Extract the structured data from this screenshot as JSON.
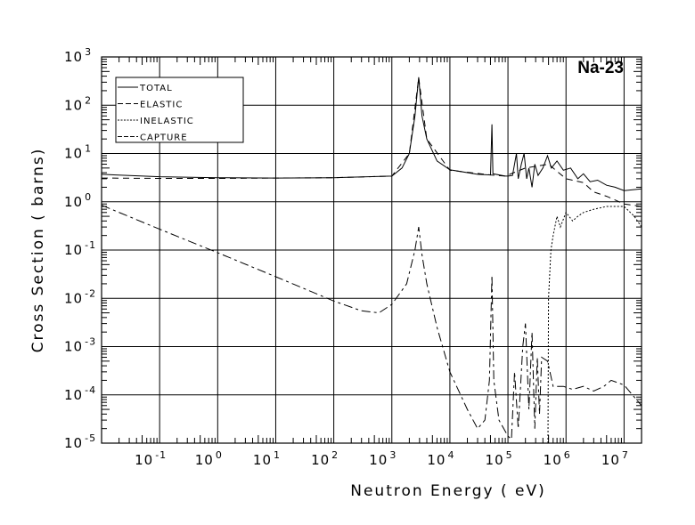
{
  "chart_data": {
    "type": "line",
    "title": "Na-23",
    "xlabel": "Neutron Energy ( eV)",
    "ylabel": "Cross Section ( barns)",
    "xscale": "log",
    "yscale": "log",
    "xlim": [
      0.01,
      20000000
    ],
    "ylim": [
      1e-05,
      1000
    ],
    "xticks": [
      {
        "base": "10",
        "exp": "-1",
        "v": 0.1
      },
      {
        "base": "10",
        "exp": "0",
        "v": 1
      },
      {
        "base": "10",
        "exp": "1",
        "v": 10
      },
      {
        "base": "10",
        "exp": "2",
        "v": 100
      },
      {
        "base": "10",
        "exp": "3",
        "v": 1000
      },
      {
        "base": "10",
        "exp": "4",
        "v": 10000
      },
      {
        "base": "10",
        "exp": "5",
        "v": 100000
      },
      {
        "base": "10",
        "exp": "6",
        "v": 1000000
      },
      {
        "base": "10",
        "exp": "7",
        "v": 10000000
      }
    ],
    "yticks": [
      {
        "base": "10",
        "exp": "3",
        "v": 1000
      },
      {
        "base": "10",
        "exp": "2",
        "v": 100
      },
      {
        "base": "10",
        "exp": "1",
        "v": 10
      },
      {
        "base": "10",
        "exp": "0",
        "v": 1
      },
      {
        "base": "10",
        "exp": "-1",
        "v": 0.1
      },
      {
        "base": "10",
        "exp": "-2",
        "v": 0.01
      },
      {
        "base": "10",
        "exp": "-3",
        "v": 0.001
      },
      {
        "base": "10",
        "exp": "-4",
        "v": 0.0001
      },
      {
        "base": "10",
        "exp": "-5",
        "v": 1e-05
      }
    ],
    "grid": true,
    "legend_position": "top-left",
    "series": [
      {
        "name": "TOTAL",
        "dash": "",
        "points": [
          [
            0.01,
            3.7
          ],
          [
            0.1,
            3.3
          ],
          [
            1,
            3.15
          ],
          [
            10,
            3.1
          ],
          [
            100,
            3.15
          ],
          [
            1000,
            3.4
          ],
          [
            1500,
            5
          ],
          [
            2000,
            10
          ],
          [
            2500,
            60
          ],
          [
            2900,
            380
          ],
          [
            3300,
            60
          ],
          [
            4000,
            20
          ],
          [
            6000,
            7
          ],
          [
            10000,
            4.6
          ],
          [
            30000,
            3.7
          ],
          [
            50000,
            3.6
          ],
          [
            53000,
            40
          ],
          [
            55000,
            3.8
          ],
          [
            90000,
            3.4
          ],
          [
            100000,
            3.4
          ],
          [
            120000,
            3.5
          ],
          [
            140000,
            10
          ],
          [
            150000,
            3
          ],
          [
            170000,
            6
          ],
          [
            190000,
            10
          ],
          [
            210000,
            3
          ],
          [
            230000,
            5
          ],
          [
            260000,
            2
          ],
          [
            290000,
            6
          ],
          [
            330000,
            3.5
          ],
          [
            400000,
            5
          ],
          [
            480000,
            9
          ],
          [
            560000,
            5
          ],
          [
            700000,
            7
          ],
          [
            900000,
            4.5
          ],
          [
            1200000,
            5
          ],
          [
            1600000,
            3
          ],
          [
            2000000,
            3.8
          ],
          [
            2600000,
            2.6
          ],
          [
            3500000,
            2.8
          ],
          [
            5000000,
            2.2
          ],
          [
            7000000,
            2
          ],
          [
            10000000,
            1.7
          ],
          [
            20000000,
            1.85
          ]
        ]
      },
      {
        "name": "ELASTIC",
        "dash": "7,5",
        "points": [
          [
            0.01,
            3.1
          ],
          [
            0.1,
            3.05
          ],
          [
            1,
            3.05
          ],
          [
            10,
            3.1
          ],
          [
            100,
            3.15
          ],
          [
            1000,
            3.4
          ],
          [
            2000,
            10
          ],
          [
            2900,
            370
          ],
          [
            4000,
            20
          ],
          [
            10000,
            4.5
          ],
          [
            50000,
            3.6
          ],
          [
            90000,
            3.4
          ],
          [
            200000,
            5
          ],
          [
            500000,
            6
          ],
          [
            1000000,
            3
          ],
          [
            2000000,
            2.5
          ],
          [
            3000000,
            1.6
          ],
          [
            5000000,
            1.3
          ],
          [
            10000000,
            0.9
          ],
          [
            20000000,
            0.8
          ]
        ]
      },
      {
        "name": "INELASTIC",
        "dash": "2,2",
        "points": [
          [
            490000,
            1e-05
          ],
          [
            500000,
            0.01
          ],
          [
            550000,
            0.1
          ],
          [
            600000,
            0.2
          ],
          [
            700000,
            0.5
          ],
          [
            800000,
            0.3
          ],
          [
            1000000,
            0.6
          ],
          [
            1300000,
            0.4
          ],
          [
            1600000,
            0.5
          ],
          [
            2000000,
            0.6
          ],
          [
            3000000,
            0.7
          ],
          [
            5000000,
            0.8
          ],
          [
            10000000,
            0.8
          ],
          [
            15000000,
            0.5
          ],
          [
            20000000,
            0.3
          ]
        ]
      },
      {
        "name": "CAPTURE",
        "dash": "10,4,3,4",
        "points": [
          [
            0.01,
            0.85
          ],
          [
            0.1,
            0.27
          ],
          [
            1,
            0.088
          ],
          [
            10,
            0.028
          ],
          [
            100,
            0.0088
          ],
          [
            300,
            0.0055
          ],
          [
            600,
            0.005
          ],
          [
            1000,
            0.0075
          ],
          [
            1800,
            0.02
          ],
          [
            2500,
            0.1
          ],
          [
            2900,
            0.3
          ],
          [
            3300,
            0.08
          ],
          [
            4000,
            0.02
          ],
          [
            6000,
            0.0025
          ],
          [
            10000,
            0.0003
          ],
          [
            20000,
            5e-05
          ],
          [
            30000,
            2e-05
          ],
          [
            40000,
            3e-05
          ],
          [
            48000,
            0.0002
          ],
          [
            53000,
            0.03
          ],
          [
            57000,
            0.0002
          ],
          [
            70000,
            3e-05
          ],
          [
            100000,
            1.4e-05
          ],
          [
            115000,
            1.2e-05
          ],
          [
            130000,
            0.0003
          ],
          [
            150000,
            2e-05
          ],
          [
            180000,
            0.001
          ],
          [
            200000,
            0.003
          ],
          [
            230000,
            5e-05
          ],
          [
            260000,
            0.002
          ],
          [
            290000,
            2e-05
          ],
          [
            320000,
            0.0006
          ],
          [
            350000,
            4e-05
          ],
          [
            380000,
            0.0006
          ],
          [
            480000,
            0.0005
          ],
          [
            600000,
            0.00015
          ],
          [
            900000,
            0.00015
          ],
          [
            1300000,
            0.00013
          ],
          [
            2000000,
            0.00015
          ],
          [
            3000000,
            0.00012
          ],
          [
            4500000,
            0.00015
          ],
          [
            6000000,
            0.0002
          ],
          [
            10000000,
            0.00016
          ],
          [
            20000000,
            6e-05
          ]
        ]
      }
    ]
  }
}
